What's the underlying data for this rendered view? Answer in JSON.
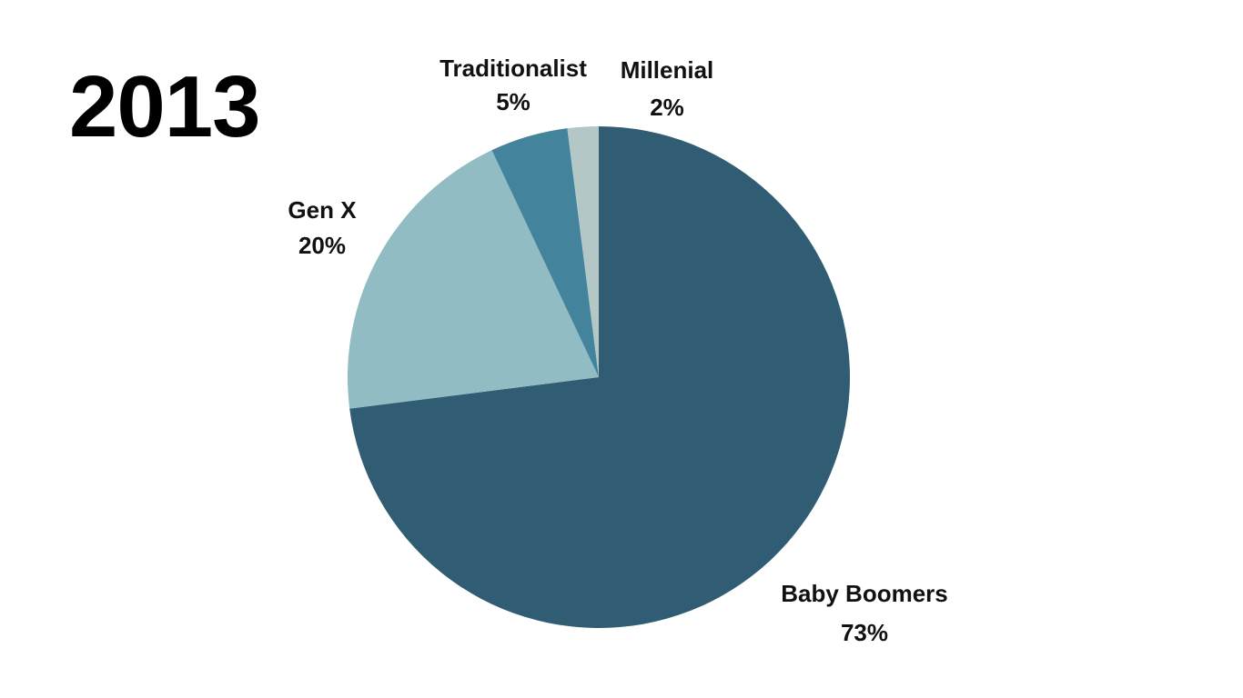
{
  "chart_data": {
    "type": "pie",
    "title": "2013",
    "start_angle_deg": 0,
    "direction": "clockwise",
    "slices": [
      {
        "label": "Baby Boomers",
        "value_label": "73%",
        "value": 73,
        "color": "#315d74"
      },
      {
        "label": "Gen X",
        "value_label": "20%",
        "value": 20,
        "color": "#91bcc3"
      },
      {
        "label": "Traditionalist",
        "value_label": "5%",
        "value": 5,
        "color": "#44839c"
      },
      {
        "label": "Millenial",
        "value_label": "2%",
        "value": 2,
        "color": "#b3c7c6"
      }
    ]
  }
}
